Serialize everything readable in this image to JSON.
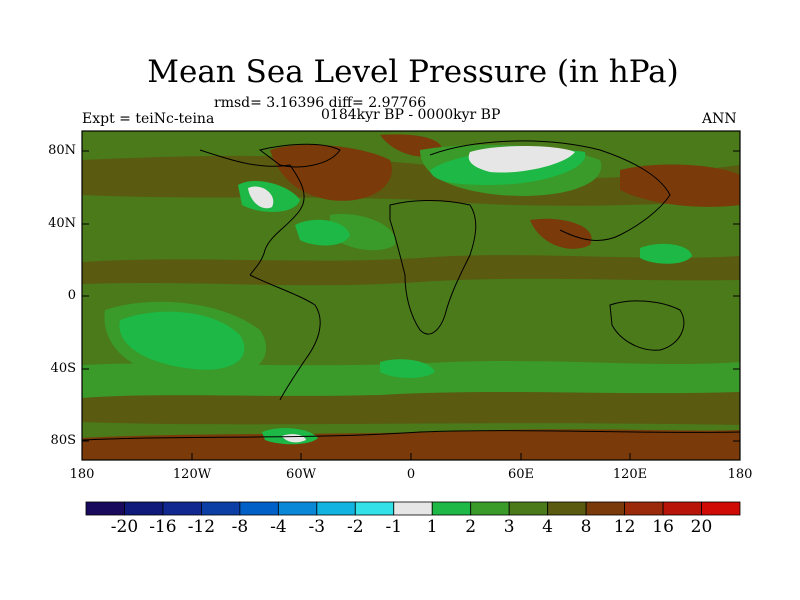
{
  "figure": {
    "title": "Mean Sea Level Pressure (in hPa)",
    "stats": "rmsd= 3.16396 diff= 2.97766",
    "period": "0184kyr BP - 0000kyr BP",
    "experiment": "Expt = teiNc-teina",
    "season": "ANN"
  },
  "axes": {
    "lat_labels": [
      "80N",
      "40N",
      "0",
      "40S",
      "80S"
    ],
    "lon_labels": [
      "180",
      "120W",
      "60W",
      "0",
      "60E",
      "120E",
      "180"
    ]
  },
  "colorbar": {
    "labels": [
      "-20",
      "-16",
      "-12",
      "-8",
      "-4",
      "-3",
      "-2",
      "-1",
      "1",
      "2",
      "3",
      "4",
      "8",
      "12",
      "16",
      "20"
    ],
    "colors": [
      "#1a0a5e",
      "#0f1a7a",
      "#10288f",
      "#0b3fa6",
      "#0060c8",
      "#0a88d8",
      "#11b3e0",
      "#33e2e8",
      "#e6e6e6",
      "#1db845",
      "#3a9a2a",
      "#4a7a1a",
      "#5a5a10",
      "#7a3a0a",
      "#9a2a0a",
      "#b81408",
      "#d00a04"
    ]
  },
  "map_colors": {
    "base": "#4a7a1a",
    "olive": "#5a5a10",
    "brown": "#7a3a0a",
    "mid_green": "#3a9a2a",
    "bright_green": "#1db845",
    "light": "#e6e6e6"
  }
}
